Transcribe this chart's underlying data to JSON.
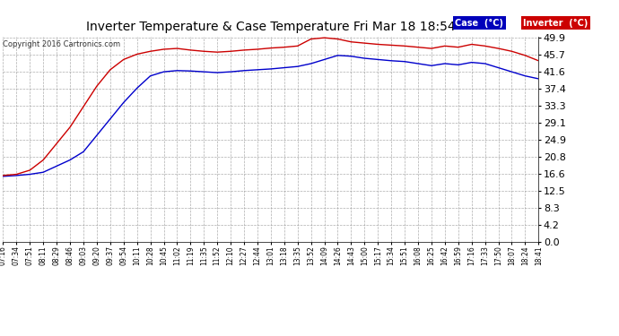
{
  "title": "Inverter Temperature & Case Temperature Fri Mar 18 18:54",
  "copyright": "Copyright 2016 Cartronics.com",
  "legend_case_label": "Case  (°C)",
  "legend_inverter_label": "Inverter  (°C)",
  "case_color": "#0000cc",
  "inverter_color": "#cc0000",
  "legend_case_bg": "#0000bb",
  "legend_inverter_bg": "#cc0000",
  "background_color": "#ffffff",
  "plot_bg_color": "#ffffff",
  "grid_color": "#999999",
  "yticks": [
    0.0,
    4.2,
    8.3,
    12.5,
    16.6,
    20.8,
    24.9,
    29.1,
    33.3,
    37.4,
    41.6,
    45.7,
    49.9
  ],
  "ymin": 0.0,
  "ymax": 49.9,
  "xtick_labels": [
    "07:16",
    "07:34",
    "07:51",
    "08:11",
    "08:29",
    "08:46",
    "09:03",
    "09:20",
    "09:37",
    "09:54",
    "10:11",
    "10:28",
    "10:45",
    "11:02",
    "11:19",
    "11:35",
    "11:52",
    "12:10",
    "12:27",
    "12:44",
    "13:01",
    "13:18",
    "13:35",
    "13:52",
    "14:09",
    "14:26",
    "14:43",
    "15:00",
    "15:17",
    "15:34",
    "15:51",
    "16:08",
    "16:25",
    "16:42",
    "16:59",
    "17:16",
    "17:33",
    "17:50",
    "18:07",
    "18:24",
    "18:41"
  ],
  "case_data": [
    16.0,
    16.2,
    16.5,
    17.0,
    18.5,
    20.0,
    22.0,
    26.0,
    30.0,
    34.0,
    37.5,
    40.5,
    41.5,
    41.8,
    41.7,
    41.5,
    41.3,
    41.5,
    41.8,
    42.0,
    42.2,
    42.5,
    42.8,
    43.5,
    44.5,
    45.5,
    45.3,
    44.8,
    44.5,
    44.2,
    44.0,
    43.5,
    43.0,
    43.5,
    43.2,
    43.8,
    43.5,
    42.5,
    41.5,
    40.5,
    39.8
  ],
  "inverter_data": [
    16.2,
    16.5,
    17.5,
    20.0,
    24.0,
    28.0,
    33.0,
    38.0,
    42.0,
    44.5,
    45.8,
    46.5,
    47.0,
    47.2,
    46.8,
    46.5,
    46.3,
    46.5,
    46.8,
    47.0,
    47.3,
    47.5,
    47.8,
    49.5,
    49.8,
    49.5,
    48.8,
    48.5,
    48.2,
    48.0,
    47.8,
    47.5,
    47.2,
    47.8,
    47.5,
    48.2,
    47.8,
    47.2,
    46.5,
    45.5,
    44.2
  ],
  "figwidth": 6.9,
  "figheight": 3.75,
  "dpi": 100
}
